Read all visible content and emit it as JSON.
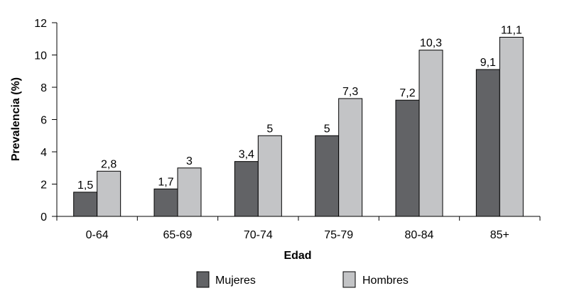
{
  "chart_data": {
    "type": "bar",
    "title": "",
    "xlabel": "Edad",
    "ylabel": "Prevalencia (%)",
    "categories": [
      "0-64",
      "65-69",
      "70-74",
      "75-79",
      "80-84",
      "85+"
    ],
    "series": [
      {
        "name": "Mujeres",
        "values": [
          1.5,
          1.7,
          3.4,
          5,
          7.2,
          9.1
        ],
        "labels": [
          "1,5",
          "1,7",
          "3,4",
          "5",
          "7,2",
          "9,1"
        ],
        "color": "#626366"
      },
      {
        "name": "Hombres",
        "values": [
          2.8,
          3,
          5,
          7.3,
          10.3,
          11.1
        ],
        "labels": [
          "2,8",
          "3",
          "5",
          "7,3",
          "10,3",
          "11,1"
        ],
        "color": "#c3c4c6"
      }
    ],
    "ylim": [
      0,
      12
    ],
    "yticks": [
      0,
      2,
      4,
      6,
      8,
      10,
      12
    ],
    "grid": false,
    "legend_position": "bottom"
  }
}
